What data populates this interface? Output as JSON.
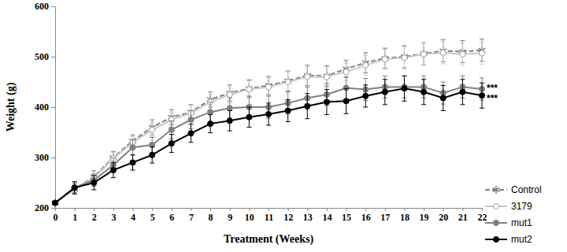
{
  "chart_data": {
    "type": "line",
    "x_label": "Treatment (Weeks)",
    "y_label": "Weight (g)",
    "x": [
      0,
      1,
      2,
      3,
      4,
      5,
      6,
      7,
      8,
      9,
      10,
      11,
      12,
      13,
      14,
      15,
      16,
      17,
      18,
      19,
      20,
      21,
      22
    ],
    "xlim": [
      0,
      22
    ],
    "xticks": [
      0,
      1,
      2,
      3,
      4,
      5,
      6,
      7,
      8,
      9,
      10,
      11,
      12,
      13,
      14,
      15,
      16,
      17,
      18,
      19,
      20,
      21,
      22
    ],
    "ylim": [
      200,
      600
    ],
    "yticks": [
      200,
      300,
      400,
      500,
      600
    ],
    "grid": false,
    "legend": "right",
    "series": [
      {
        "name": "Control",
        "color": "#808080",
        "marker": "asterisk",
        "line_style": "dashed",
        "values": [
          210,
          237,
          262,
          300,
          333,
          360,
          380,
          390,
          415,
          428,
          437,
          443,
          452,
          463,
          462,
          476,
          488,
          497,
          500,
          506,
          512,
          510,
          513
        ],
        "errors": [
          0,
          10,
          12,
          12,
          12,
          15,
          15,
          15,
          15,
          16,
          17,
          18,
          20,
          20,
          20,
          17,
          20,
          20,
          22,
          22,
          22,
          22,
          22
        ]
      },
      {
        "name": "3179",
        "color": "#c8c8c8",
        "marker": "circle",
        "line_style": "solid",
        "values": [
          210,
          237,
          260,
          298,
          330,
          355,
          375,
          388,
          410,
          425,
          435,
          440,
          450,
          460,
          460,
          470,
          483,
          495,
          498,
          505,
          508,
          505,
          507
        ],
        "errors": [
          0,
          10,
          12,
          12,
          12,
          14,
          15,
          15,
          15,
          16,
          17,
          18,
          20,
          20,
          20,
          17,
          20,
          20,
          22,
          22,
          22,
          22,
          22
        ]
      },
      {
        "name": "mut1",
        "color": "#808080",
        "marker": "circle",
        "line_style": "solid",
        "annotation": "***",
        "values": [
          210,
          240,
          255,
          285,
          320,
          325,
          355,
          375,
          390,
          398,
          400,
          400,
          408,
          418,
          425,
          438,
          435,
          440,
          440,
          440,
          428,
          440,
          436
        ],
        "errors": [
          0,
          10,
          12,
          14,
          15,
          15,
          18,
          18,
          20,
          20,
          22,
          22,
          22,
          22,
          22,
          22,
          22,
          22,
          22,
          22,
          22,
          22,
          22
        ]
      },
      {
        "name": "mut2",
        "color": "#000000",
        "marker": "circle",
        "line_style": "solid",
        "annotation": "***",
        "values": [
          210,
          240,
          250,
          275,
          290,
          305,
          328,
          348,
          367,
          373,
          380,
          386,
          393,
          402,
          410,
          412,
          422,
          430,
          437,
          430,
          418,
          430,
          423
        ],
        "errors": [
          0,
          12,
          14,
          15,
          15,
          16,
          18,
          18,
          18,
          20,
          20,
          22,
          22,
          25,
          25,
          25,
          22,
          25,
          25,
          25,
          25,
          25,
          25
        ]
      }
    ]
  }
}
